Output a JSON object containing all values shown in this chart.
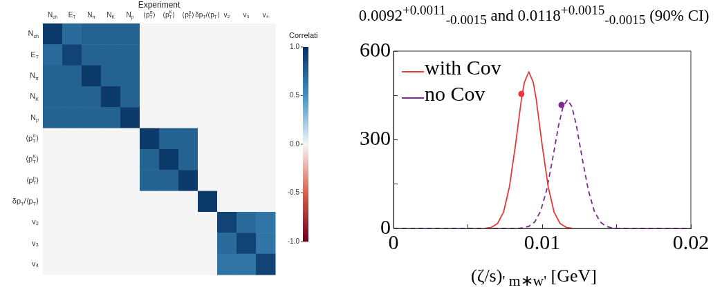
{
  "chart_data": [
    {
      "type": "heatmap",
      "title": "Experiment",
      "clabel": "Correlati",
      "categories": [
        "N$_{ch}$",
        "E$_{T}$",
        "N$_{π}$",
        "N$_{K}$",
        "N$_{p}$",
        "⟨p$_{T}$$^{π}$⟩",
        "⟨p$_{T}$$^{K}$⟩",
        "⟨p$_{T}$$^{p}$⟩",
        "δp$_{T}$/⟨p$_{T}$⟩",
        "v₂",
        "v₃",
        "v₄"
      ],
      "y_categories": [
        "N$_{ch}$",
        "E$_{T}$",
        "N$_{π}$",
        "N$_{K}$",
        "N$_{p}$",
        "⟨p$_{T}$$^{π}$⟩",
        "⟨p$_{T}$$^{K}$⟩",
        "⟨p$_{T}$$^{p}$⟩",
        "δp$_{T}$/⟨p$_{T}$⟩",
        "v₂",
        "v₃",
        "v₄"
      ],
      "cells": [
        [
          0.95,
          0.7,
          0.75,
          0.75,
          0.75,
          0,
          0,
          0,
          0,
          0,
          0,
          0
        ],
        [
          0.7,
          0.9,
          0.75,
          0.75,
          0.75,
          0,
          0,
          0,
          0,
          0,
          0,
          0
        ],
        [
          0.75,
          0.75,
          0.95,
          0.75,
          0.75,
          0,
          0,
          0,
          0,
          0,
          0,
          0
        ],
        [
          0.75,
          0.75,
          0.75,
          0.95,
          0.75,
          0,
          0,
          0,
          0,
          0,
          0,
          0
        ],
        [
          0.75,
          0.75,
          0.75,
          0.75,
          0.95,
          0,
          0,
          0,
          0,
          0,
          0,
          0
        ],
        [
          0,
          0,
          0,
          0,
          0,
          0.95,
          0.75,
          0.75,
          0,
          0,
          0,
          0
        ],
        [
          0,
          0,
          0,
          0,
          0,
          0.75,
          0.95,
          0.75,
          0,
          0,
          0,
          0
        ],
        [
          0,
          0,
          0,
          0,
          0,
          0.75,
          0.75,
          0.95,
          0,
          0,
          0,
          0
        ],
        [
          0,
          0,
          0,
          0,
          0,
          0,
          0,
          0,
          0.95,
          0,
          0,
          0
        ],
        [
          0,
          0,
          0,
          0,
          0,
          0,
          0,
          0,
          0,
          0.9,
          0.7,
          0.65
        ],
        [
          0,
          0,
          0,
          0,
          0,
          0,
          0,
          0,
          0,
          0.7,
          0.9,
          0.65
        ],
        [
          0,
          0,
          0,
          0,
          0,
          0,
          0,
          0,
          0,
          0.65,
          0.65,
          0.9
        ]
      ],
      "clim": [
        -1,
        1
      ],
      "cticks": [
        {
          "value": -1,
          "label": "-1.0"
        },
        {
          "value": -0.5,
          "label": "-0.5"
        },
        {
          "value": 0,
          "label": "0.0"
        },
        {
          "value": 0.5,
          "label": "0.5"
        },
        {
          "value": 1,
          "label": "1.0"
        }
      ]
    },
    {
      "type": "line",
      "title": "0.0092$^{+0.0011}$$_{-0.0015}$ and 0.0118$^{+0.0015}$$_{-0.0015}$ (90% CI)",
      "xlabel": "(ζ/s)$_{' m∗w'}$ [GeV]",
      "xlim": [
        0,
        0.02
      ],
      "ylim": [
        0,
        600
      ],
      "xticks": [
        0,
        {
          "value": 0.005,
          "label": null
        },
        0.01,
        {
          "value": 0.015,
          "label": null
        },
        0.02
      ],
      "yticks": [
        0,
        {
          "value": 150,
          "label": null
        },
        300,
        {
          "value": 450,
          "label": null
        },
        600
      ],
      "grid": false,
      "legend": "top left",
      "series": [
        {
          "name": "with Cov",
          "color": "#e8393a",
          "line_style": "solid",
          "marker": "none",
          "x": [
            0.0062,
            0.0066,
            0.007,
            0.0074,
            0.0078,
            0.0082,
            0.0086,
            0.0088,
            0.0091,
            0.0094,
            0.0096,
            0.01,
            0.0104,
            0.0108,
            0.0112,
            0.0116,
            0.012
          ],
          "values": [
            1,
            4,
            17,
            55,
            142,
            281,
            436,
            494,
            530,
            494,
            436,
            281,
            142,
            55,
            17,
            4,
            1
          ]
        },
        {
          "name": "no Cov",
          "color": "#7b2a90",
          "line_style": "dashed",
          "marker": "none",
          "x": [
            0,
            0.0083,
            0.0087,
            0.0091,
            0.0095,
            0.0099,
            0.0103,
            0.0107,
            0.0111,
            0.0114,
            0.0117,
            0.012,
            0.0123,
            0.0127,
            0.0131,
            0.0135,
            0.0139,
            0.0143,
            0.0147,
            0.0151,
            0.02
          ],
          "values": [
            0,
            0,
            2,
            7,
            22,
            59,
            130,
            235,
            348,
            412,
            435,
            412,
            348,
            235,
            130,
            59,
            22,
            7,
            2,
            0,
            0
          ]
        },
        {
          "type": "scatter",
          "color": "#e8393a",
          "marker": "circle",
          "x": [
            0.0086
          ],
          "values": [
            455
          ]
        },
        {
          "type": "scatter",
          "color": "#7b2a90",
          "marker": "circle",
          "x": [
            0.0113
          ],
          "values": [
            418
          ]
        }
      ]
    }
  ]
}
